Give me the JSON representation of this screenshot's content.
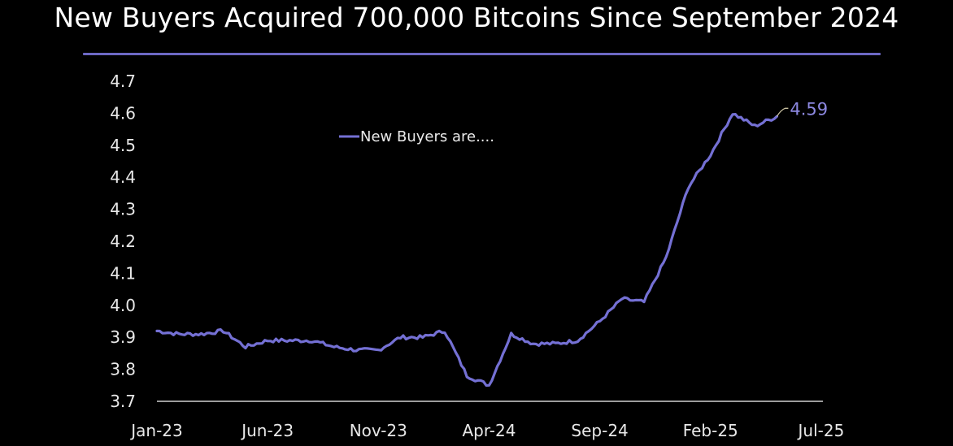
{
  "title": "New Buyers Acquired 700,000 Bitcoins Since September 2024",
  "colors": {
    "background": "#000000",
    "series": "#7470d4",
    "title_rule": "#6c68c4",
    "axis": "#cfcfcf",
    "text": "#e8e8e8",
    "end_label": "#8c88e0",
    "leader_line": "#c8c0a0"
  },
  "chart_data": {
    "type": "line",
    "title": "New Buyers Acquired 700,000 Bitcoins Since September 2024",
    "xlabel": "",
    "ylabel": "",
    "ylim": [
      3.7,
      4.7
    ],
    "grid": false,
    "legend_position": "top-center inside plot",
    "y_ticks": [
      "4.7",
      "4.6",
      "4.5",
      "4.4",
      "4.3",
      "4.2",
      "4.1",
      "4.0",
      "3.9",
      "3.8",
      "3.7"
    ],
    "x_ticks": [
      "Jan-23",
      "Jun-23",
      "Nov-23",
      "Apr-24",
      "Sep-24",
      "Feb-25",
      "Jul-25"
    ],
    "series": [
      {
        "name": "New Buyers are....",
        "end_value_label": "4.59",
        "x": [
          "Jan-23",
          "Feb-23",
          "Mar-23",
          "Apr-23",
          "May-23",
          "Jun-23",
          "Jul-23",
          "Aug-23",
          "Sep-23",
          "Oct-23",
          "Nov-23",
          "Dec-23",
          "Jan-24",
          "Feb-24",
          "Mar-24",
          "Apr-24",
          "May-24",
          "Jun-24",
          "Jul-24",
          "Aug-24",
          "Sep-24",
          "Oct-24",
          "Nov-24",
          "Dec-24",
          "Jan-25",
          "Feb-25",
          "Mar-25",
          "Apr-25",
          "May-25"
        ],
        "values": [
          3.92,
          3.91,
          3.91,
          3.92,
          3.87,
          3.89,
          3.89,
          3.89,
          3.87,
          3.86,
          3.86,
          3.9,
          3.9,
          3.92,
          3.78,
          3.75,
          3.91,
          3.88,
          3.88,
          3.89,
          3.95,
          4.02,
          4.01,
          4.15,
          4.37,
          4.47,
          4.6,
          4.56,
          4.59
        ]
      }
    ]
  },
  "legend": {
    "label": "New Buyers are...."
  },
  "end_label": "4.59"
}
